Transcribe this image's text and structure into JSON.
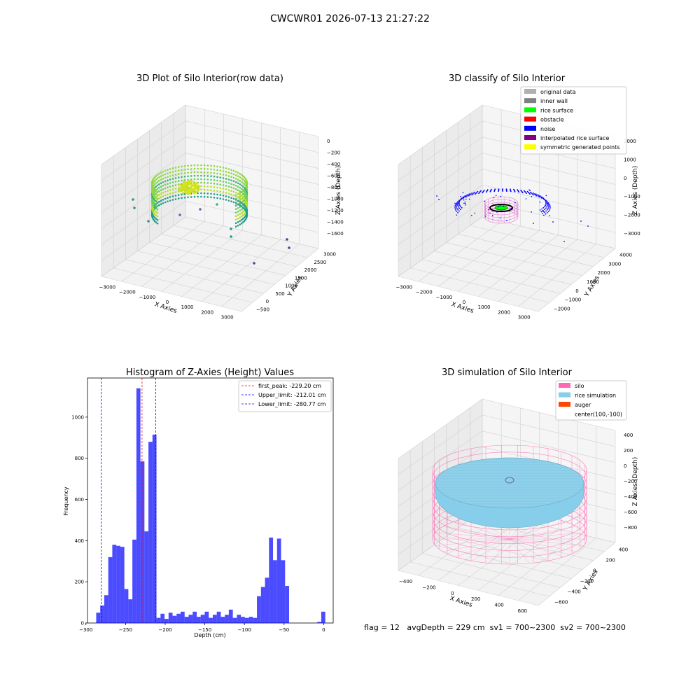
{
  "suptitle": "CWCWR01 2026-07-13 21:27:22",
  "footer": "flag = 12   avgDepth = 229 cm  sv1 = 700~2300  sv2 = 700~2300",
  "chart_data": [
    {
      "type": "scatter",
      "title": "3D Plot of Silo Interior(row data)",
      "xlabel": "X Axies",
      "ylabel": "Y Axies",
      "zlabel": "Z Axies (Depth)",
      "x_ticks": [
        "−3000",
        "−2000",
        "−1000",
        "0",
        "1000",
        "2000",
        "3000"
      ],
      "y_ticks": [
        "−500",
        "0",
        "500",
        "1000",
        "1500",
        "2000",
        "2500",
        "3000"
      ],
      "z_ticks": [
        "0",
        "−200",
        "−400",
        "−600",
        "−800",
        "−1000",
        "−1200",
        "−1400",
        "−1600"
      ]
    },
    {
      "type": "scatter",
      "title": "3D classify of Silo Interior",
      "xlabel": "X Axies",
      "ylabel": "Y Axies",
      "zlabel": "Z Axies (Depth)",
      "x_ticks": [
        "−3000",
        "−2000",
        "−1000",
        "0",
        "1000",
        "2000",
        "3000"
      ],
      "y_ticks": [
        "−2000",
        "−1000",
        "0",
        "1000",
        "2000",
        "3000",
        "4000"
      ],
      "z_ticks": [
        "2000",
        "1000",
        "0",
        "−1000",
        "−2000",
        "−3000"
      ],
      "legend_position": "top-right",
      "legend": [
        {
          "label": "original data",
          "color": "#b0b0b0"
        },
        {
          "label": "inner wall",
          "color": "#808080"
        },
        {
          "label": "rice surface",
          "color": "#00ff00"
        },
        {
          "label": "obstacle",
          "color": "#ff0000"
        },
        {
          "label": "noise",
          "color": "#0000ff"
        },
        {
          "label": "interpolated rice surface",
          "color": "#800080"
        },
        {
          "label": "symmetric generated points",
          "color": "#ffff00"
        }
      ]
    },
    {
      "type": "bar",
      "title": "Histogram of Z-Axies (Height) Values",
      "xlabel": "Depth (cm)",
      "ylabel": "Frequency",
      "xlim": [
        -298,
        12
      ],
      "ylim": [
        0,
        1190
      ],
      "x_ticks": [
        -300,
        -250,
        -200,
        -150,
        -100,
        -50,
        0
      ],
      "y_ticks": [
        0,
        200,
        400,
        600,
        800,
        1000
      ],
      "bin_width": 5.07,
      "bin_starts": [
        -287.0,
        -281.93,
        -276.86,
        -271.79,
        -266.72,
        -261.65,
        -256.58,
        -251.51,
        -246.44,
        -241.37,
        -236.3,
        -231.23,
        -226.16,
        -221.09,
        -216.02,
        -210.95,
        -205.88,
        -200.81,
        -195.74,
        -190.67,
        -185.6,
        -180.53,
        -175.46,
        -170.39,
        -165.32,
        -160.25,
        -155.18,
        -150.11,
        -145.04,
        -139.97,
        -134.9,
        -129.83,
        -124.76,
        -119.69,
        -114.62,
        -109.55,
        -104.48,
        -99.41,
        -94.34,
        -89.27,
        -84.2,
        -79.13,
        -74.06,
        -68.99,
        -63.92,
        -58.85,
        -53.78,
        -48.71,
        -43.63,
        -38.56,
        -8.15,
        -3.08
      ],
      "values": [
        50,
        85,
        135,
        320,
        380,
        375,
        370,
        165,
        115,
        405,
        1140,
        785,
        445,
        880,
        915,
        25,
        45,
        20,
        50,
        35,
        45,
        55,
        30,
        40,
        55,
        30,
        40,
        55,
        25,
        40,
        55,
        30,
        40,
        65,
        25,
        40,
        30,
        25,
        30,
        25,
        130,
        175,
        220,
        415,
        305,
        410,
        305,
        180,
        0,
        0,
        5,
        55
      ],
      "lines": [
        {
          "label": "first_peak: -229.20 cm",
          "x": -229.2,
          "color": "#ff0000"
        },
        {
          "label": "Upper_limit: -212.01 cm",
          "x": -212.01,
          "color": "#0000ff"
        },
        {
          "label": "Lower_limit: -280.77 cm",
          "x": -280.77,
          "color": "#0000ff"
        }
      ],
      "legend_position": "top-right",
      "bar_color": "#0000ff"
    },
    {
      "type": "scatter",
      "title": "3D simulation of Silo Interior",
      "xlabel": "X Axies",
      "ylabel": "Y Axies",
      "zlabel": "Z Axies (Depth)",
      "x_ticks": [
        "−400",
        "−200",
        "0",
        "200",
        "400",
        "600"
      ],
      "y_ticks": [
        "−600",
        "−400",
        "−200",
        "0",
        "200",
        "400"
      ],
      "z_ticks": [
        "400",
        "200",
        "0",
        "−200",
        "−400",
        "−600",
        "−800"
      ],
      "legend_position": "top-right",
      "legend": [
        {
          "label": "silo",
          "color": "#ff69b4"
        },
        {
          "label": "rice simulation",
          "color": "#87ceeb"
        },
        {
          "label": "auger",
          "color": "#ff4500"
        },
        {
          "label": "center(100,-100)",
          "color": ""
        }
      ]
    }
  ]
}
